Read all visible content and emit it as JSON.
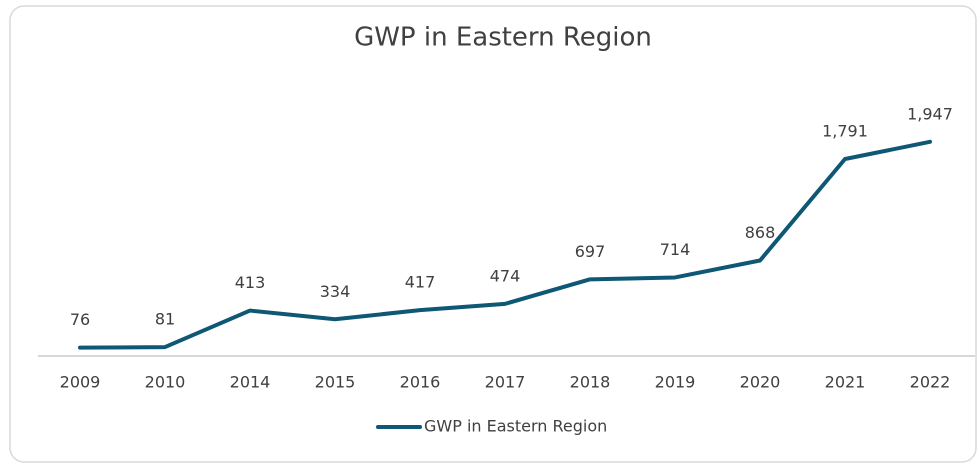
{
  "chart_data": {
    "type": "line",
    "title": "GWP in Eastern Region",
    "categories": [
      "2009",
      "2010",
      "2014",
      "2015",
      "2016",
      "2017",
      "2018",
      "2019",
      "2020",
      "2021",
      "2022"
    ],
    "series": [
      {
        "name": "GWP in Eastern Region",
        "color": "#0e5775",
        "values": [
          76,
          81,
          413,
          334,
          417,
          474,
          697,
          714,
          868,
          1791,
          1947
        ],
        "value_labels": [
          "76",
          "81",
          "413",
          "334",
          "417",
          "474",
          "697",
          "714",
          "868",
          "1,791",
          "1,947"
        ]
      }
    ],
    "ylim": [
      0,
      2500
    ],
    "legend": "bottom"
  }
}
